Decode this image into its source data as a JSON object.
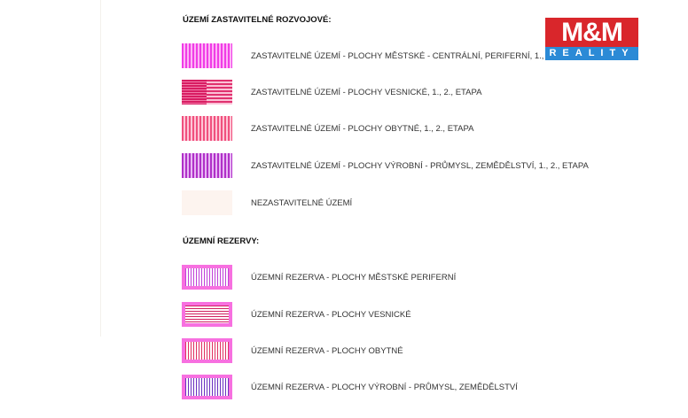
{
  "sections": [
    {
      "title": "ÚZEMÍ ZASTAVITELNÉ ROZVOJOVÉ:",
      "items": [
        {
          "label": "ZASTAVITELNÉ ÚZEMÍ - PLOCHY MĚSTSKÉ - CENTRÁLNÍ, PERIFERNÍ, 1., 2., ETAPA",
          "color": "#f03ce6"
        },
        {
          "label": "ZASTAVITELNÉ ÚZEMÍ - PLOCHY VESNICKÉ, 1., 2., ETAPA",
          "color": "#e0306e"
        },
        {
          "label": "ZASTAVITELNÉ ÚZEMÍ - PLOCHY OBYTNÉ, 1., 2., ETAPA",
          "color": "#f0507e"
        },
        {
          "label": "ZASTAVITELNÉ ÚZEMÍ - PLOCHY VÝROBNÍ - PRŮMYSL, ZEMĚDĚLSTVÍ, 1., 2., ETAPA",
          "color": "#b030c8"
        },
        {
          "label": "NEZASTAVITELNÉ ÚZEMÍ",
          "color": "#fdf4ef"
        }
      ]
    },
    {
      "title": "ÚZEMNÍ REZERVY:",
      "items": [
        {
          "label": "ÚZEMNÍ REZERVA - PLOCHY MĚSTSKÉ PERIFERNÍ",
          "color": "#c040d8"
        },
        {
          "label": "ÚZEMNÍ REZERVA - PLOCHY VESNICKÉ",
          "color": "#d02060"
        },
        {
          "label": "ÚZEMNÍ REZERVA - PLOCHY OBYTNÉ",
          "color": "#e03060"
        },
        {
          "label": "ÚZEMNÍ REZERVA - PLOCHY VÝROBNÍ - PRŮMYSL, ZEMĚDĚLSTVÍ",
          "color": "#6a30c0"
        }
      ]
    }
  ],
  "logo": {
    "top": "M&M",
    "bottom": "REALITY",
    "colors": {
      "red": "#d9262b",
      "blue": "#2b8ad6"
    }
  }
}
